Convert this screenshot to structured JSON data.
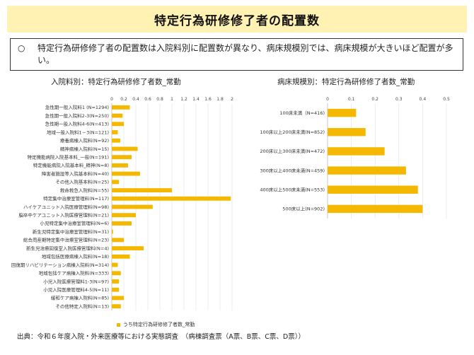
{
  "header": {
    "title": "特定行為研修修了者の配置数"
  },
  "note": {
    "bullet": "○",
    "text": "特定行為研修修了者の配置数は入院料別に配置数が異なり、病床規模別では、病床規模が大きいほど配置が多い。"
  },
  "legend": {
    "label": "うち特定行為研修修了者数_常勤"
  },
  "source": "出典：令和６年度入院・外来医療等における実態調査　（病棟調査票（A票、B票、C票、D票））",
  "colors": {
    "bar": "#f5b800",
    "title_bg": "#fff2b3"
  },
  "chart_data": [
    {
      "type": "bar",
      "orientation": "horizontal",
      "title": "入院料別：特定行為研修修了者数_常勤",
      "xlim": [
        0,
        2
      ],
      "ticks": [
        "0",
        "0.2",
        "0.4",
        "0.6",
        "0.8",
        "1",
        "1.2",
        "1.4",
        "1.6",
        "1.8",
        "2"
      ],
      "categories": [
        "急性期一般入院料1 (N=1294)",
        "急性期一般入院料2-3(N=250)",
        "急性期一般入院料4-6(N=413)",
        "地域一般入院料1－3(N=121)",
        "療養病棟入院料(N=92)",
        "精神病棟入院料(N=15)",
        "特定機能病院入院基本料_一般(N=191)",
        "特定機能病院入院基本料_精神(N=8)",
        "障害者施設等入院基本料(N=40)",
        "その他入院基本料(N=25)",
        "救命救急入院料(N=55)",
        "特定集中治療室管理料(N=117)",
        "ハイケアユニット入院医療管理料(N=98)",
        "脳卒中ケアユニット入院医療管理料(N=21)",
        "小児特定集中治療室管理料(N=6)",
        "新生児特定集中治療室管理料(N=31)",
        "総合周産期特定集中治療室管理料(N=23)",
        "新生児治療回復室入院医療管理料(N=4)",
        "地域包括医療病棟入院料(N=18)",
        "回復期リハビリテーション病棟入院料(N=314)",
        "地域包括ケア病棟入院料(N=333)",
        "小児入院医療管理料1-3(N=97)",
        "小児入院医療管理料4-5(N=11)",
        "緩和ケア病棟入院料(N=85)",
        "その他特定入院料(N=13)"
      ],
      "values": [
        0.3,
        0.18,
        0.2,
        0.1,
        0.14,
        0.43,
        0.33,
        0.27,
        0.47,
        0.12,
        1.0,
        1.98,
        0.68,
        0.4,
        0.33,
        0.02,
        0.2,
        0.53,
        0.3,
        0.1,
        0.15,
        0.12,
        0.12,
        0.2,
        0.15
      ]
    },
    {
      "type": "bar",
      "orientation": "horizontal",
      "title": "病床規模別：特定行為研修修了者数_常勤",
      "xlim": [
        0,
        0.5
      ],
      "ticks": [
        "0",
        "0.1",
        "0.2",
        "0.3",
        "0.4",
        "0.5"
      ],
      "categories": [
        "100床未満（N=416)",
        "100床以上200床未満(N=852)",
        "200床以上300床未満(N=472)",
        "300床以上400床未満(N=459)",
        "400床以上500床未満(N=553)",
        "500床以上(N=902)"
      ],
      "values": [
        0.12,
        0.16,
        0.24,
        0.33,
        0.38,
        0.4
      ]
    }
  ]
}
